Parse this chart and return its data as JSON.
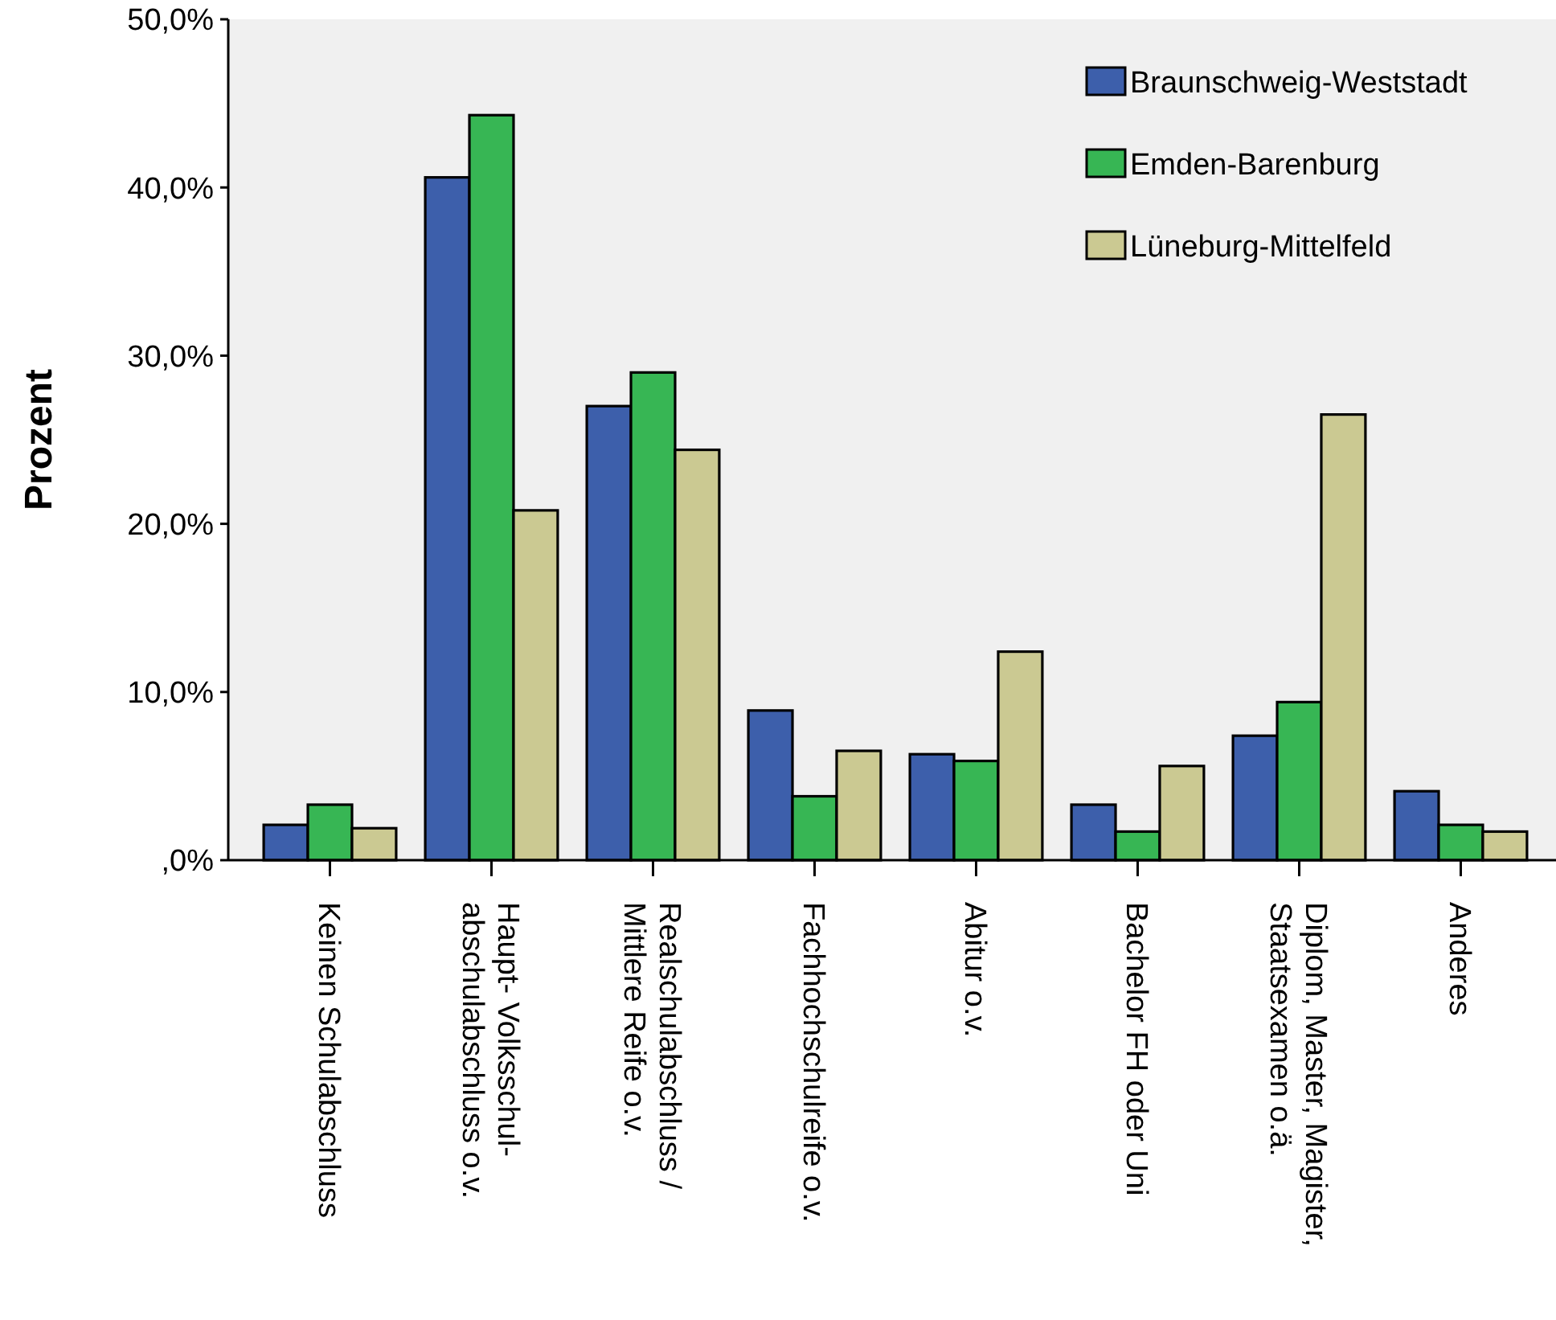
{
  "chart_data": {
    "type": "bar",
    "ylabel": "Prozent",
    "categories": [
      "Keinen Schulabschluss",
      "Haupt- Volksschul-\nabschulabschluss o.v.",
      "Realschulabschluss /\nMittlere Reife o.v.",
      "Fachhochschulreife o.v.",
      "Abitur o.v.",
      "Bachelor FH oder Uni",
      "Diplom, Master, Magister,\nStaatsexamen o.ä.",
      "Anderes"
    ],
    "series": [
      {
        "name": "Braunschweig-Weststadt",
        "color": "#3d5fab",
        "values": [
          2.1,
          40.6,
          27.0,
          8.9,
          6.3,
          3.3,
          7.4,
          4.1
        ]
      },
      {
        "name": "Emden-Barenburg",
        "color": "#37b654",
        "values": [
          3.3,
          44.3,
          29.0,
          3.8,
          5.9,
          1.7,
          9.4,
          2.1
        ]
      },
      {
        "name": "Lüneburg-Mittelfeld",
        "color": "#cbc992",
        "values": [
          1.9,
          20.8,
          24.4,
          6.5,
          12.4,
          5.6,
          26.5,
          1.7
        ]
      }
    ],
    "ylim": [
      0,
      50
    ],
    "yticks": [
      {
        "value": 0,
        "label": ",0%"
      },
      {
        "value": 10,
        "label": "10,0%"
      },
      {
        "value": 20,
        "label": "20,0%"
      },
      {
        "value": 30,
        "label": "30,0%"
      },
      {
        "value": 40,
        "label": "40,0%"
      },
      {
        "value": 50,
        "label": "50,0%"
      }
    ],
    "legend": "top right"
  }
}
